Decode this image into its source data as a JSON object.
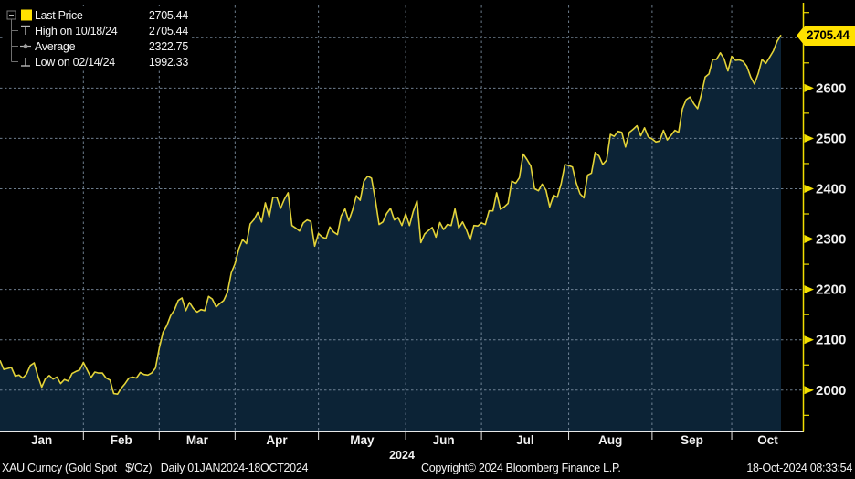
{
  "legend": {
    "rows": [
      {
        "icon": "last-price-swatch",
        "label": "Last Price",
        "value": "2705.44"
      },
      {
        "icon": "high-marker",
        "label": "High on 10/18/24",
        "value": "2705.44"
      },
      {
        "icon": "average-marker",
        "label": "Average",
        "value": "2322.75"
      },
      {
        "icon": "low-marker",
        "label": "Low on 02/14/24",
        "value": "1992.33"
      }
    ]
  },
  "price_tag": "2705.44",
  "x_axis": {
    "year_label": "2024"
  },
  "footer": {
    "left": "XAU Curncy (Gold Spot   $/Oz)   Daily 01JAN2024-18OCT2024",
    "copyright": "Copyright© 2024 Bloomberg Finance L.P.",
    "timestamp": "18-Oct-2024 08:33:54"
  },
  "colors": {
    "background": "#000000",
    "line": "#e3d339",
    "area_fill": "#0c2336",
    "axis_yellow": "#f2de00",
    "tag_bg": "#ffe100",
    "grid": "#8193a6",
    "axis_text": "#f2f2f2",
    "bottom_axis": "#e8e8e8"
  },
  "chart_data": {
    "type": "area",
    "title": "XAU Curncy (Gold Spot $/Oz) Daily 01JAN2024-18OCT2024",
    "legend_position": "top-left",
    "grid": true,
    "x_tick_labels": [
      "Jan",
      "Feb",
      "Mar",
      "Apr",
      "May",
      "Jun",
      "Jul",
      "Aug",
      "Sep",
      "Oct"
    ],
    "y_ticks": [
      2000,
      2100,
      2200,
      2300,
      2400,
      2500,
      2600
    ],
    "y_gridlines": [
      2000,
      2100,
      2200,
      2300,
      2400,
      2500,
      2600,
      2700
    ],
    "y_minor_tick_step": 50,
    "ylim": [
      1917,
      2764
    ],
    "last_price": 2705.44,
    "high": {
      "date": "10/18/24",
      "value": 2705.44
    },
    "average": 2322.75,
    "low": {
      "date": "02/14/24",
      "value": 1992.33
    },
    "series_name": "XAU Gold Spot $/Oz Last Price",
    "points": [
      [
        "1/2",
        2059
      ],
      [
        "1/3",
        2041
      ],
      [
        "1/4",
        2043
      ],
      [
        "1/5",
        2045
      ],
      [
        "1/8",
        2028
      ],
      [
        "1/9",
        2030
      ],
      [
        "1/10",
        2024
      ],
      [
        "1/11",
        2032
      ],
      [
        "1/12",
        2049
      ],
      [
        "1/15",
        2054
      ],
      [
        "1/16",
        2028
      ],
      [
        "1/17",
        2006
      ],
      [
        "1/18",
        2023
      ],
      [
        "1/19",
        2029
      ],
      [
        "1/22",
        2022
      ],
      [
        "1/23",
        2026
      ],
      [
        "1/24",
        2013
      ],
      [
        "1/25",
        2021
      ],
      [
        "1/26",
        2018
      ],
      [
        "1/29",
        2033
      ],
      [
        "1/30",
        2037
      ],
      [
        "1/31",
        2040
      ],
      [
        "2/1",
        2055
      ],
      [
        "2/2",
        2040
      ],
      [
        "2/5",
        2025
      ],
      [
        "2/6",
        2036
      ],
      [
        "2/7",
        2034
      ],
      [
        "2/8",
        2034
      ],
      [
        "2/9",
        2024
      ],
      [
        "2/12",
        2020
      ],
      [
        "2/13",
        1993
      ],
      [
        "2/14",
        1992
      ],
      [
        "2/15",
        2004
      ],
      [
        "2/16",
        2013
      ],
      [
        "2/20",
        2024
      ],
      [
        "2/21",
        2026
      ],
      [
        "2/22",
        2024
      ],
      [
        "2/23",
        2035
      ],
      [
        "2/26",
        2031
      ],
      [
        "2/27",
        2030
      ],
      [
        "2/28",
        2034
      ],
      [
        "2/29",
        2044
      ],
      [
        "3/1",
        2083
      ],
      [
        "3/4",
        2115
      ],
      [
        "3/5",
        2128
      ],
      [
        "3/6",
        2148
      ],
      [
        "3/7",
        2159
      ],
      [
        "3/8",
        2178
      ],
      [
        "3/11",
        2183
      ],
      [
        "3/12",
        2158
      ],
      [
        "3/13",
        2174
      ],
      [
        "3/14",
        2162
      ],
      [
        "3/15",
        2155
      ],
      [
        "3/18",
        2160
      ],
      [
        "3/19",
        2158
      ],
      [
        "3/20",
        2186
      ],
      [
        "3/21",
        2181
      ],
      [
        "3/22",
        2165
      ],
      [
        "3/25",
        2172
      ],
      [
        "3/26",
        2178
      ],
      [
        "3/27",
        2194
      ],
      [
        "3/28",
        2233
      ],
      [
        "4/1",
        2251
      ],
      [
        "4/2",
        2281
      ],
      [
        "4/3",
        2299
      ],
      [
        "4/4",
        2291
      ],
      [
        "4/5",
        2330
      ],
      [
        "4/8",
        2339
      ],
      [
        "4/9",
        2353
      ],
      [
        "4/10",
        2334
      ],
      [
        "4/11",
        2372
      ],
      [
        "4/12",
        2344
      ],
      [
        "4/15",
        2383
      ],
      [
        "4/16",
        2383
      ],
      [
        "4/17",
        2361
      ],
      [
        "4/18",
        2379
      ],
      [
        "4/19",
        2392
      ],
      [
        "4/22",
        2327
      ],
      [
        "4/23",
        2322
      ],
      [
        "4/24",
        2316
      ],
      [
        "4/25",
        2332
      ],
      [
        "4/26",
        2338
      ],
      [
        "4/29",
        2335
      ],
      [
        "4/30",
        2286
      ],
      [
        "5/1",
        2311
      ],
      [
        "5/2",
        2304
      ],
      [
        "5/3",
        2301
      ],
      [
        "5/6",
        2324
      ],
      [
        "5/7",
        2314
      ],
      [
        "5/8",
        2309
      ],
      [
        "5/9",
        2346
      ],
      [
        "5/10",
        2360
      ],
      [
        "5/13",
        2336
      ],
      [
        "5/14",
        2358
      ],
      [
        "5/15",
        2386
      ],
      [
        "5/16",
        2377
      ],
      [
        "5/17",
        2415
      ],
      [
        "5/20",
        2425
      ],
      [
        "5/21",
        2421
      ],
      [
        "5/22",
        2378
      ],
      [
        "5/23",
        2329
      ],
      [
        "5/24",
        2334
      ],
      [
        "5/27",
        2351
      ],
      [
        "5/28",
        2361
      ],
      [
        "5/29",
        2338
      ],
      [
        "5/30",
        2343
      ],
      [
        "5/31",
        2327
      ],
      [
        "6/3",
        2350
      ],
      [
        "6/4",
        2327
      ],
      [
        "6/5",
        2355
      ],
      [
        "6/6",
        2376
      ],
      [
        "6/7",
        2293
      ],
      [
        "6/10",
        2310
      ],
      [
        "6/11",
        2317
      ],
      [
        "6/12",
        2323
      ],
      [
        "6/13",
        2304
      ],
      [
        "6/14",
        2333
      ],
      [
        "6/17",
        2319
      ],
      [
        "6/18",
        2329
      ],
      [
        "6/19",
        2327
      ],
      [
        "6/20",
        2360
      ],
      [
        "6/21",
        2322
      ],
      [
        "6/24",
        2334
      ],
      [
        "6/25",
        2319
      ],
      [
        "6/26",
        2298
      ],
      [
        "6/27",
        2327
      ],
      [
        "6/28",
        2326
      ],
      [
        "7/1",
        2332
      ],
      [
        "7/2",
        2329
      ],
      [
        "7/3",
        2356
      ],
      [
        "7/4",
        2356
      ],
      [
        "7/5",
        2392
      ],
      [
        "7/8",
        2359
      ],
      [
        "7/9",
        2364
      ],
      [
        "7/10",
        2371
      ],
      [
        "7/11",
        2415
      ],
      [
        "7/12",
        2411
      ],
      [
        "7/15",
        2422
      ],
      [
        "7/16",
        2469
      ],
      [
        "7/17",
        2458
      ],
      [
        "7/18",
        2445
      ],
      [
        "7/19",
        2400
      ],
      [
        "7/22",
        2396
      ],
      [
        "7/23",
        2409
      ],
      [
        "7/24",
        2397
      ],
      [
        "7/25",
        2364
      ],
      [
        "7/26",
        2387
      ],
      [
        "7/29",
        2383
      ],
      [
        "7/30",
        2410
      ],
      [
        "7/31",
        2448
      ],
      [
        "8/1",
        2446
      ],
      [
        "8/2",
        2443
      ],
      [
        "8/5",
        2411
      ],
      [
        "8/6",
        2390
      ],
      [
        "8/7",
        2382
      ],
      [
        "8/8",
        2427
      ],
      [
        "8/9",
        2431
      ],
      [
        "8/12",
        2472
      ],
      [
        "8/13",
        2465
      ],
      [
        "8/14",
        2448
      ],
      [
        "8/15",
        2457
      ],
      [
        "8/16",
        2508
      ],
      [
        "8/19",
        2504
      ],
      [
        "8/20",
        2514
      ],
      [
        "8/21",
        2512
      ],
      [
        "8/22",
        2483
      ],
      [
        "8/23",
        2512
      ],
      [
        "8/26",
        2518
      ],
      [
        "8/27",
        2525
      ],
      [
        "8/28",
        2505
      ],
      [
        "8/29",
        2521
      ],
      [
        "8/30",
        2503
      ],
      [
        "9/2",
        2499
      ],
      [
        "9/3",
        2493
      ],
      [
        "9/4",
        2495
      ],
      [
        "9/5",
        2516
      ],
      [
        "9/6",
        2497
      ],
      [
        "9/9",
        2506
      ],
      [
        "9/10",
        2516
      ],
      [
        "9/11",
        2512
      ],
      [
        "9/12",
        2559
      ],
      [
        "9/13",
        2577
      ],
      [
        "9/16",
        2582
      ],
      [
        "9/17",
        2569
      ],
      [
        "9/18",
        2559
      ],
      [
        "9/19",
        2587
      ],
      [
        "9/20",
        2622
      ],
      [
        "9/23",
        2628
      ],
      [
        "9/24",
        2657
      ],
      [
        "9/25",
        2657
      ],
      [
        "9/26",
        2670
      ],
      [
        "9/27",
        2658
      ],
      [
        "9/30",
        2634
      ],
      [
        "10/1",
        2663
      ],
      [
        "10/2",
        2655
      ],
      [
        "10/3",
        2656
      ],
      [
        "10/4",
        2653
      ],
      [
        "10/7",
        2643
      ],
      [
        "10/8",
        2622
      ],
      [
        "10/9",
        2608
      ],
      [
        "10/10",
        2629
      ],
      [
        "10/11",
        2657
      ],
      [
        "10/14",
        2649
      ],
      [
        "10/15",
        2661
      ],
      [
        "10/16",
        2674
      ],
      [
        "10/17",
        2693
      ],
      [
        "10/18",
        2705.44
      ]
    ]
  }
}
